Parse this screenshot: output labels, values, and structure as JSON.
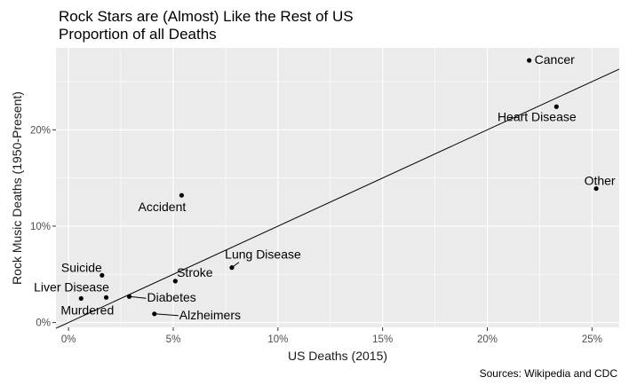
{
  "chart_data": {
    "type": "scatter",
    "title": "Rock Stars are (Almost) Like the Rest of US",
    "subtitle": "Proportion of all Deaths",
    "xlabel": "US Deaths (2015)",
    "ylabel": "Rock Music Deaths (1950-Present)",
    "caption": "Sources: Wikipedia and CDC",
    "xlim": [
      -0.6,
      26.3
    ],
    "ylim": [
      -0.5,
      28.5
    ],
    "x_ticks": [
      0,
      5,
      10,
      15,
      20,
      25
    ],
    "x_tick_labels": [
      "0%",
      "5%",
      "10%",
      "15%",
      "20%",
      "25%"
    ],
    "y_ticks": [
      0,
      10,
      20
    ],
    "y_tick_labels": [
      "0%",
      "10%",
      "20%"
    ],
    "grid": true,
    "background": "#ebebeb",
    "grid_color": "#ffffff",
    "point_color": "#000000",
    "points": [
      {
        "label": "Cancer",
        "x": 22.0,
        "y": 27.2
      },
      {
        "label": "Heart Disease",
        "x": 23.3,
        "y": 22.4
      },
      {
        "label": "Other",
        "x": 25.2,
        "y": 13.9
      },
      {
        "label": "Accident",
        "x": 5.4,
        "y": 13.2
      },
      {
        "label": "Lung Disease",
        "x": 7.8,
        "y": 5.7
      },
      {
        "label": "Suicide",
        "x": 1.6,
        "y": 4.9
      },
      {
        "label": "Stroke",
        "x": 5.1,
        "y": 4.3
      },
      {
        "label": "Liver Disease",
        "x": 1.8,
        "y": 2.6
      },
      {
        "label": "Diabetes",
        "x": 2.9,
        "y": 2.7
      },
      {
        "label": "Murdered",
        "x": 0.6,
        "y": 2.5
      },
      {
        "label": "Alzheimers",
        "x": 4.1,
        "y": 0.9
      }
    ],
    "reference_line": {
      "type": "y=x",
      "from": -0.6,
      "to": 26.3
    }
  }
}
